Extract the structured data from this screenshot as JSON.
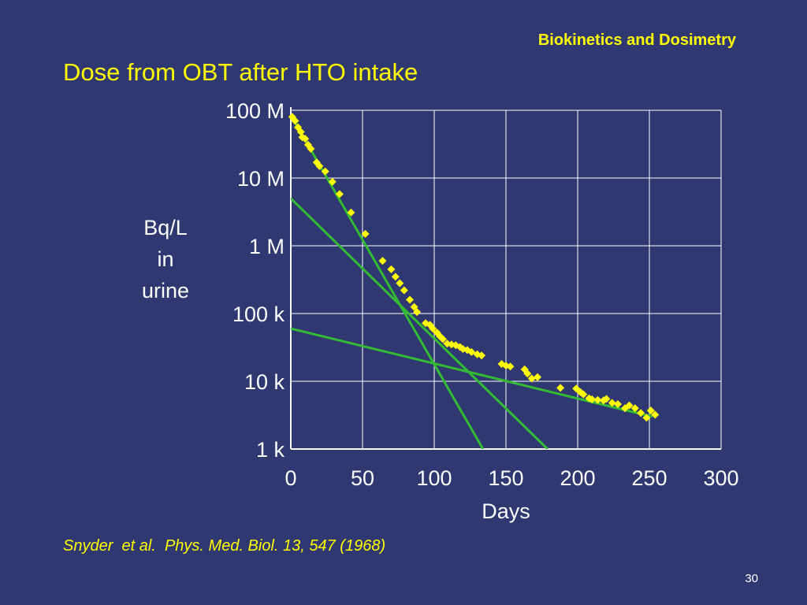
{
  "slide": {
    "header_title": "Biokinetics and Dosimetry",
    "title": "Dose from OBT after HTO intake",
    "citation": "Snyder  et al.  Phys. Med. Biol. 13, 547 (1968)",
    "page_number": "30"
  },
  "chart_data": {
    "type": "scatter",
    "xlabel": "Days",
    "ylabel_lines": [
      "Bq/L",
      "in",
      "urine"
    ],
    "xlim": [
      0,
      300
    ],
    "ylim": [
      1000,
      100000000
    ],
    "yscale": "log",
    "xticks": [
      0,
      50,
      100,
      150,
      200,
      250,
      300
    ],
    "xtick_labels": [
      "0",
      "50",
      "100",
      "150",
      "200",
      "250",
      "300"
    ],
    "yticks": [
      1000,
      10000,
      100000,
      1000000,
      10000000,
      100000000
    ],
    "ytick_labels": [
      "1 k",
      "10 k",
      "100 k",
      "1 M",
      "10 M",
      "100 M"
    ],
    "grid": true,
    "colors": {
      "points": "#ffff00",
      "fit_lines": "#33bb33",
      "axes": "#ffffff",
      "background": "#303872"
    },
    "series": [
      {
        "kind": "points",
        "x": [
          1,
          3,
          5,
          7,
          8,
          10,
          12,
          14,
          18,
          20,
          24,
          29,
          34,
          42,
          52,
          64,
          70,
          73,
          76,
          79,
          83,
          86,
          88,
          94,
          97,
          99,
          102,
          104,
          106,
          109,
          112,
          115,
          118,
          120,
          123,
          126,
          130,
          133,
          147,
          150,
          153,
          163,
          165,
          168,
          172,
          188,
          199,
          202,
          204,
          208,
          210,
          214,
          218,
          220,
          224,
          228,
          233,
          236,
          240,
          244,
          248,
          251,
          254
        ],
        "y": [
          80000000,
          70000000,
          56000000,
          48000000,
          40000000,
          38000000,
          31000000,
          27000000,
          17000000,
          15000000,
          12500000,
          8800000,
          5800000,
          3100000,
          1500000,
          600000,
          450000,
          350000,
          280000,
          220000,
          160000,
          125000,
          105000,
          72000,
          68000,
          60000,
          52000,
          46000,
          42000,
          36000,
          35000,
          34000,
          32000,
          30000,
          29000,
          27000,
          25000,
          24000,
          18000,
          17000,
          16500,
          15000,
          13000,
          11000,
          11500,
          8000,
          7800,
          6900,
          6400,
          5600,
          5400,
          5300,
          5200,
          5500,
          4800,
          4600,
          4000,
          4400,
          4000,
          3400,
          2900,
          3700,
          3200
        ]
      },
      {
        "kind": "fit-line",
        "x": [
          0,
          134
        ],
        "y": [
          85000000,
          1000
        ]
      },
      {
        "kind": "fit-line",
        "x": [
          0,
          179
        ],
        "y": [
          5000000,
          1000
        ]
      },
      {
        "kind": "fit-line",
        "x": [
          0,
          252
        ],
        "y": [
          60000,
          3000
        ]
      }
    ]
  }
}
